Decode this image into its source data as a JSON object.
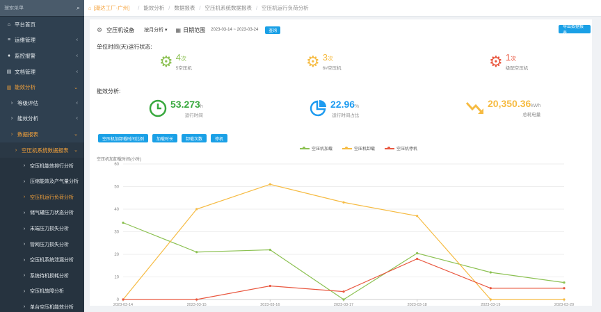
{
  "sidebar": {
    "search_placeholder": "搜索菜单",
    "items": [
      {
        "label": "平台首页",
        "lead": "⌂",
        "chev": ""
      },
      {
        "label": "运维管理",
        "lead": "≡",
        "chev": "‹"
      },
      {
        "label": "监控报警",
        "lead": "♦",
        "chev": "‹"
      },
      {
        "label": "文档管理",
        "lead": "▤",
        "chev": "‹"
      },
      {
        "label": "能效分析",
        "lead": "▥",
        "chev": "⌄"
      },
      {
        "label": "等级评估",
        "lead": "›",
        "chev": "‹"
      },
      {
        "label": "能效分析",
        "lead": "›",
        "chev": "‹"
      },
      {
        "label": "数据报表",
        "lead": "›",
        "chev": "⌄"
      },
      {
        "label": "空压机系统数据报表",
        "lead": "›",
        "chev": "⌄"
      },
      {
        "label": "空压机能效排行分析",
        "lead": "›"
      },
      {
        "label": "压缩能效及产气量分析",
        "lead": "›"
      },
      {
        "label": "空压机运行负荷分析",
        "lead": "›"
      },
      {
        "label": "储气罐压力状态分析",
        "lead": "›"
      },
      {
        "label": "末端压力损失分析",
        "lead": "›"
      },
      {
        "label": "管网压力损失分析",
        "lead": "›"
      },
      {
        "label": "空压机系统泄漏分析",
        "lead": "›"
      },
      {
        "label": "系统待机损耗分析",
        "lead": "›"
      },
      {
        "label": "空压机故障分析",
        "lead": "›"
      },
      {
        "label": "单台空压机能效分析",
        "lead": "›"
      }
    ]
  },
  "breadcrumb": {
    "home_icon": "home-icon",
    "customer": "[潮达工厂-广州]",
    "items": [
      "能效分析",
      "数据报表",
      "空压机系统数据报表",
      "空压机运行负荷分析"
    ]
  },
  "filter": {
    "device_label": "空压机设备",
    "mode": "按月分析",
    "range_label": "日期范围",
    "date_range": "2023-03-14 ~ 2023-03-24",
    "query_btn": "查询",
    "export_btn": "导出数据报表"
  },
  "status": {
    "title": "单位时间(天)运行状态:",
    "items": [
      {
        "value": "4",
        "unit": "次",
        "desc": "5空压机",
        "color": "#8cc152"
      },
      {
        "value": "3",
        "unit": "次",
        "desc": "6#空压机",
        "color": "#f6bb42"
      },
      {
        "value": "1",
        "unit": "次",
        "desc": "级配空压机",
        "color": "#e9573f"
      }
    ]
  },
  "metrics": {
    "title": "能效分析:",
    "items": [
      {
        "value": "53.273",
        "unit": "h",
        "desc": "运行时间",
        "color": "#37a83d",
        "icon": "clock-icon"
      },
      {
        "value": "22.96",
        "unit": "%",
        "desc": "运行时间占比",
        "color": "#1e9bf0",
        "icon": "pie-chart-icon"
      },
      {
        "value": "20,350.36",
        "unit": "kWh",
        "desc": "总耗电量",
        "color": "#f6bb42",
        "icon": "trend-down-icon"
      }
    ]
  },
  "chart_buttons": [
    "空压机加卸载时间比例",
    "加载时长",
    "卸载次数",
    "停机"
  ],
  "chart_data": {
    "type": "line",
    "ylabel": "空压机加卸载时间(小时)",
    "ylim": [
      0,
      60
    ],
    "yticks": [
      0,
      10,
      20,
      30,
      40,
      50,
      60
    ],
    "categories": [
      "2023-03-14",
      "2023-03-15",
      "2023-03-16",
      "2023-03-17",
      "2023-03-18",
      "2023-03-19",
      "2023-03-20"
    ],
    "series": [
      {
        "name": "空压机加载",
        "color": "#8cc152",
        "values": [
          34,
          21,
          22,
          0,
          20.5,
          12,
          7.5
        ]
      },
      {
        "name": "空压机卸载",
        "color": "#f6bb42",
        "values": [
          0,
          40,
          51,
          43,
          37,
          0,
          0
        ]
      },
      {
        "name": "空压机停机",
        "color": "#e9573f",
        "values": [
          0,
          0,
          6,
          3.5,
          18,
          5,
          5
        ]
      }
    ]
  }
}
